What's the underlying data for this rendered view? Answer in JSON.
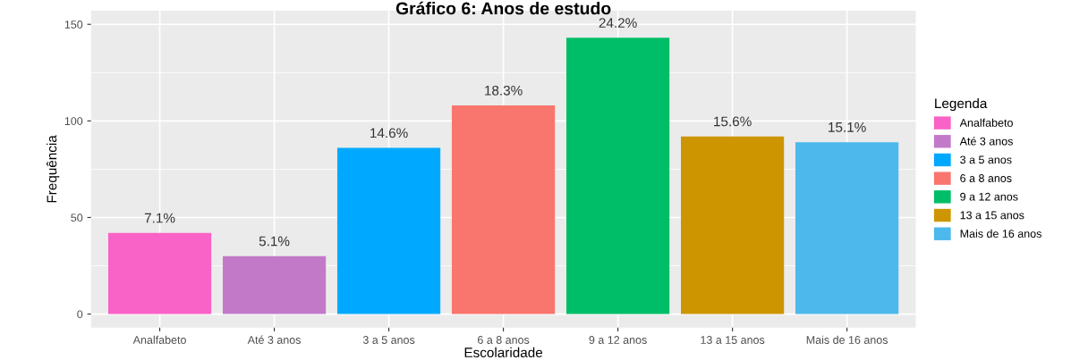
{
  "chart_data": {
    "type": "bar",
    "title": "Gráfico 6: Anos de estudo",
    "xlabel": "Escolaridade",
    "ylabel": "Frequência",
    "legend_title": "Legenda",
    "categories": [
      "Analfabeto",
      "Até 3 anos",
      "3 a 5 anos",
      "6 a 8 anos",
      "9 a 12 anos",
      "13 a 15 anos",
      "Mais de 16 anos"
    ],
    "series": [
      {
        "name": "Analfabeto",
        "color": "#f962c6",
        "values": [
          42,
          null,
          null,
          null,
          null,
          null,
          null
        ]
      },
      {
        "name": "Até 3 anos",
        "color": "#c27ac8",
        "values": [
          null,
          30,
          null,
          null,
          null,
          null,
          null
        ]
      },
      {
        "name": "3 a 5 anos",
        "color": "#00a9ff",
        "values": [
          null,
          null,
          86,
          null,
          null,
          null,
          null
        ]
      },
      {
        "name": "6 a 8 anos",
        "color": "#f8766d",
        "values": [
          null,
          null,
          null,
          108,
          null,
          null,
          null
        ]
      },
      {
        "name": "9 a 12 anos",
        "color": "#00be67",
        "values": [
          null,
          null,
          null,
          null,
          143,
          null,
          null
        ]
      },
      {
        "name": "13 a 15 anos",
        "color": "#cd9600",
        "values": [
          null,
          null,
          null,
          null,
          null,
          92,
          null
        ]
      },
      {
        "name": "Mais de 16 anos",
        "color": "#4cb8ec",
        "values": [
          null,
          null,
          null,
          null,
          null,
          null,
          89
        ]
      }
    ],
    "annotations": [
      {
        "text": "7.1%",
        "x": "Analfabeto",
        "y": 42
      },
      {
        "text": "5.1%",
        "x": "Até 3 anos",
        "y": 30
      },
      {
        "text": "14.6%",
        "x": "3 a 5 anos",
        "y": 86
      },
      {
        "text": "18.3%",
        "x": "6 a 8 anos",
        "y": 108
      },
      {
        "text": "24.2%",
        "x": "9 a 12 anos",
        "y": 143
      },
      {
        "text": "15.6%",
        "x": "13 a 15 anos",
        "y": 92
      },
      {
        "text": "15.1%",
        "x": "Mais de 16 anos",
        "y": 89
      }
    ],
    "ylim": [
      -7,
      157
    ],
    "yticks": [
      0,
      50,
      100,
      150
    ],
    "grid": true,
    "legend": "right"
  }
}
